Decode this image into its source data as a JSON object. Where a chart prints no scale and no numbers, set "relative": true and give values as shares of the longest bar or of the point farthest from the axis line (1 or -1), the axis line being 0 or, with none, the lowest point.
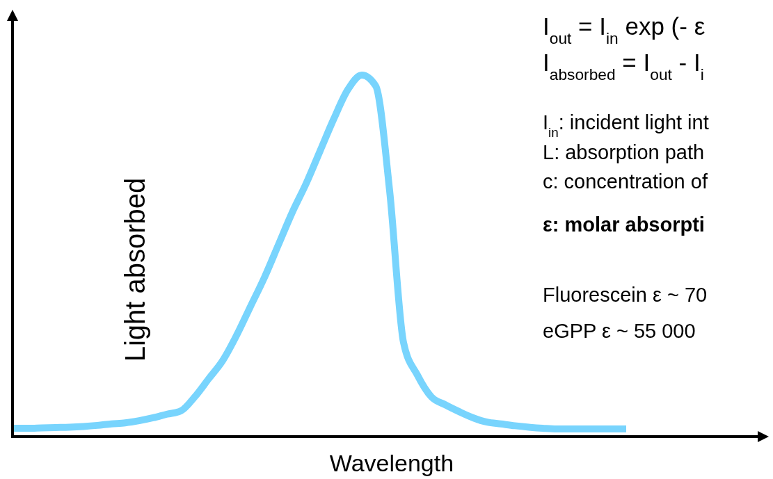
{
  "chart_data": {
    "type": "line",
    "relative": true,
    "xlabel": "Wavelength",
    "ylabel": "Light absorbed",
    "categories": [
      null,
      null,
      null,
      null,
      null,
      null,
      null,
      null,
      null,
      null,
      null,
      null,
      null,
      null,
      null,
      null,
      null,
      null,
      null,
      null,
      null,
      null,
      null,
      null,
      null,
      null,
      null,
      null,
      null,
      null,
      null,
      null,
      null,
      null,
      null,
      null,
      null,
      null,
      null,
      null,
      null,
      null,
      null,
      null,
      null
    ],
    "series": [
      {
        "color": "#78d4fd",
        "values": [
          0.023,
          0.023,
          0.024,
          0.025,
          0.026,
          0.028,
          0.031,
          0.035,
          0.038,
          0.044,
          0.052,
          0.062,
          0.071,
          0.11,
          0.16,
          0.21,
          0.28,
          0.36,
          0.44,
          0.53,
          0.62,
          0.7,
          0.79,
          0.88,
          0.96,
          1,
          0.97,
          0.68,
          0.26,
          0.17,
          0.11,
          0.088,
          0.069,
          0.052,
          0.04,
          0.035,
          0.03,
          0.026,
          0.023,
          0.021,
          0.021,
          0.021,
          0.021,
          0.021,
          0.021
        ]
      }
    ],
    "annotations": [
      "I$_{out}$ = I$_{in}$ exp (- ε",
      "I$_{absorbed}$ = I$_{out}$ - I$_{i}$",
      "I$_{in}$: incident light int",
      "L: absorption path",
      "c: concentration of",
      "ε: molar absorpti",
      "Fluorescein ε ~ 70",
      "eGPP  ε ~ 55 000"
    ]
  }
}
